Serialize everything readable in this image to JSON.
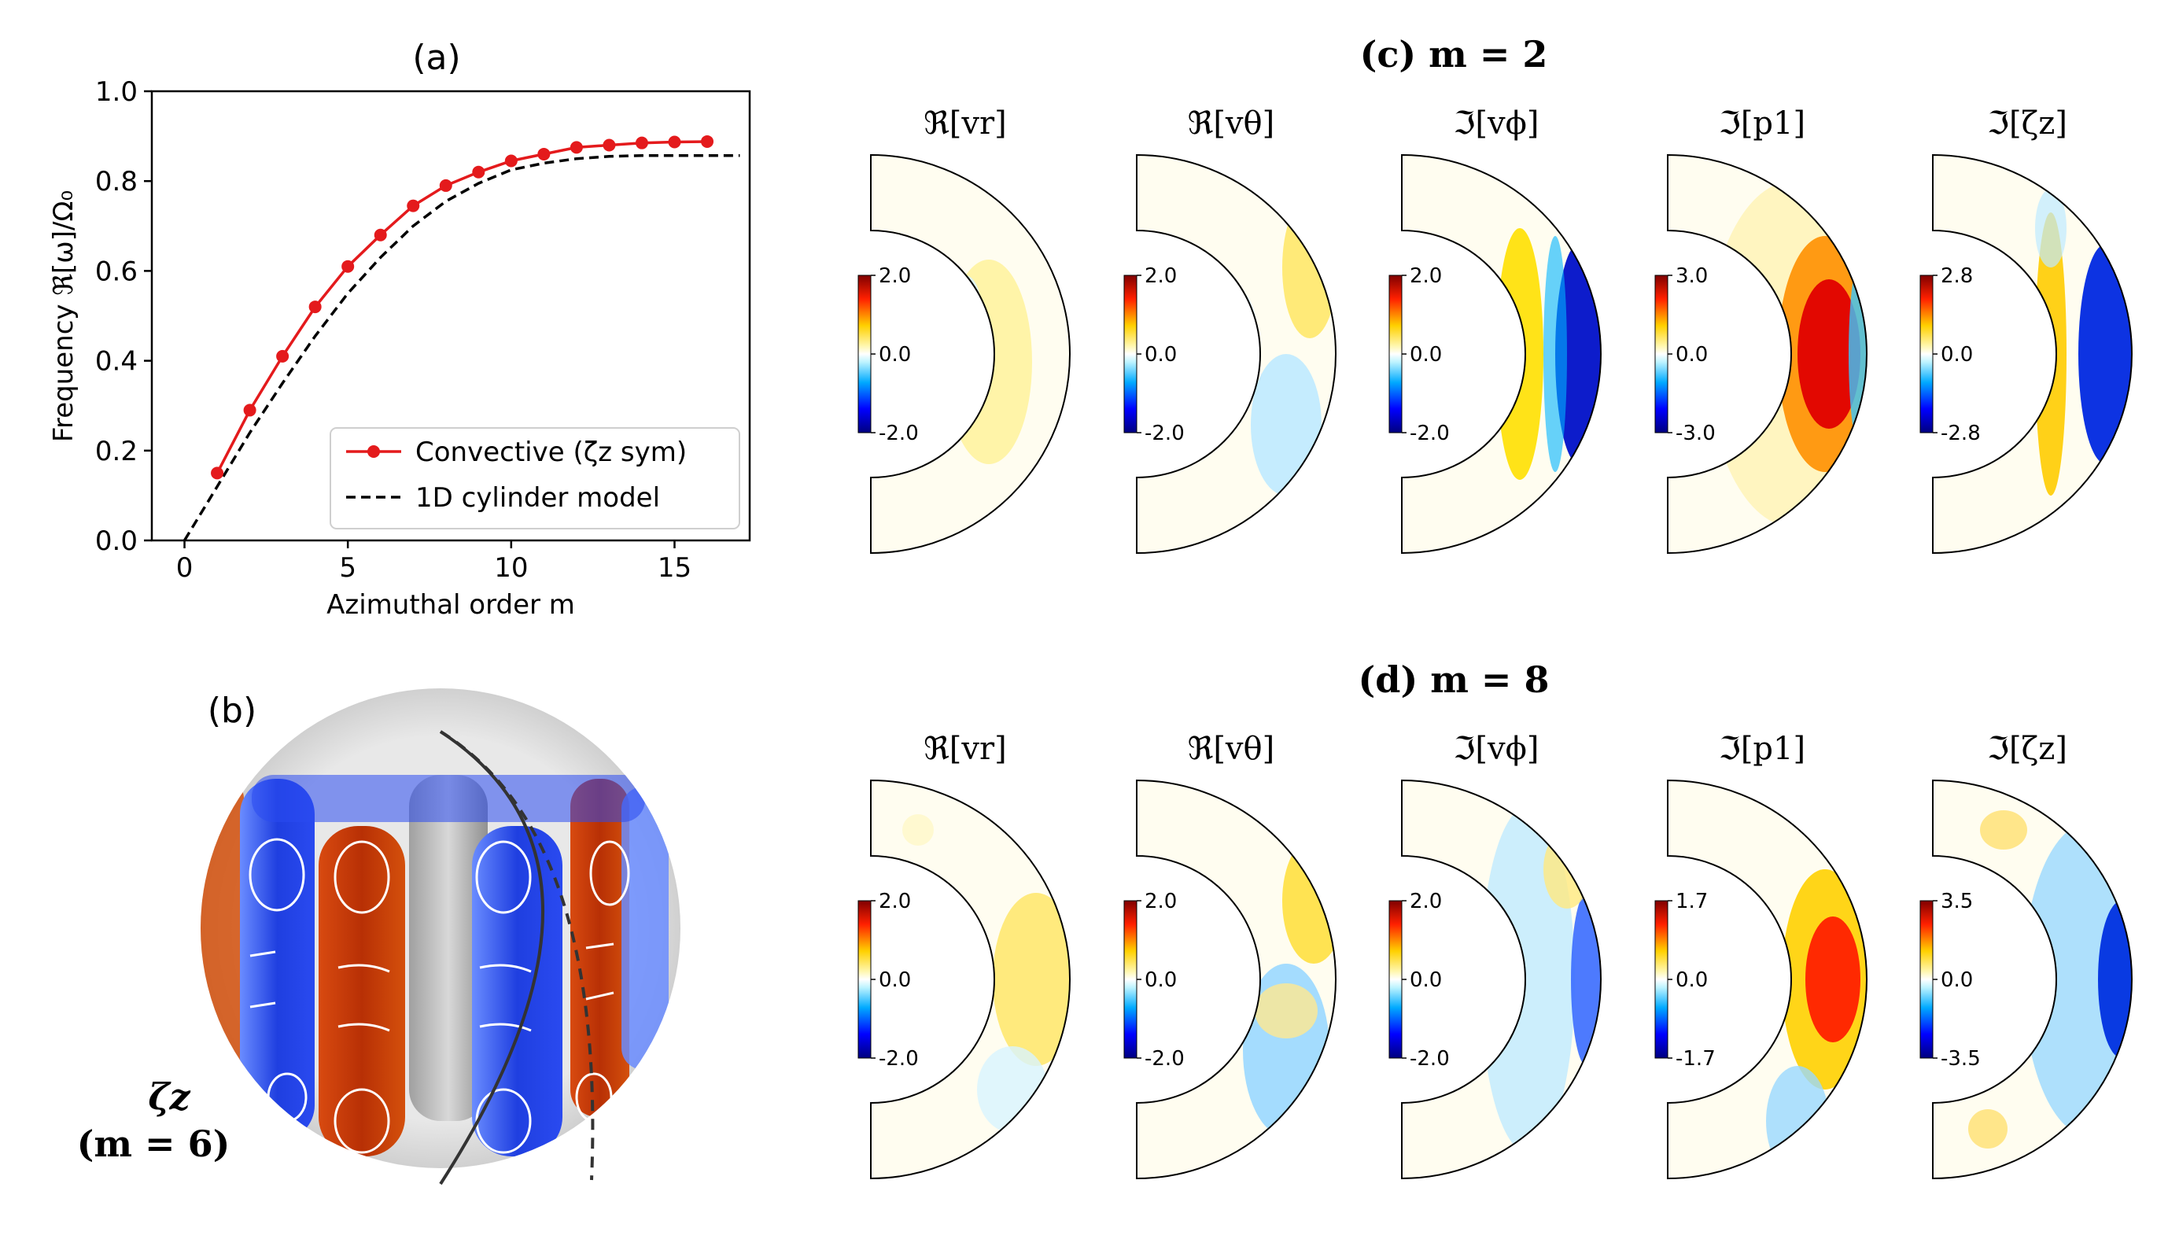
{
  "panel_a": {
    "label": "(a)",
    "chart_data": {
      "type": "line",
      "xlabel": "Azimuthal order m",
      "ylabel": "Frequency ℜ[ω]/Ω₀",
      "xlim": [
        -1,
        17.3
      ],
      "ylim": [
        0,
        1.0
      ],
      "xticks": [
        "0",
        "5",
        "10",
        "15"
      ],
      "yticks": [
        "0.0",
        "0.2",
        "0.4",
        "0.6",
        "0.8",
        "1.0"
      ],
      "grid": false,
      "legend_position": "bottom-right",
      "series": [
        {
          "name": "Convective (ζz sym)",
          "color": "#e41a1c",
          "style": "solid-markers",
          "x": [
            1,
            2,
            3,
            4,
            5,
            6,
            7,
            8,
            9,
            10,
            11,
            12,
            13,
            14,
            15,
            16
          ],
          "y": [
            0.15,
            0.29,
            0.41,
            0.52,
            0.61,
            0.68,
            0.745,
            0.79,
            0.82,
            0.845,
            0.86,
            0.875,
            0.88,
            0.885,
            0.887,
            0.888
          ]
        },
        {
          "name": "1D cylinder model",
          "color": "#000000",
          "style": "dashed",
          "x": [
            0,
            1,
            2,
            3,
            4,
            5,
            6,
            7,
            8,
            9,
            10,
            11,
            12,
            13,
            14,
            15,
            16,
            17
          ],
          "y": [
            0.0,
            0.12,
            0.24,
            0.35,
            0.455,
            0.55,
            0.63,
            0.7,
            0.755,
            0.795,
            0.825,
            0.84,
            0.85,
            0.855,
            0.857,
            0.857,
            0.857,
            0.857
          ]
        }
      ]
    }
  },
  "panel_b": {
    "label": "(b)",
    "caption_line1": "ζz",
    "caption_line2": "(m = 6)"
  },
  "panel_c": {
    "label": "(c) m = 2",
    "plots": [
      {
        "title": "ℜ[vr]",
        "cb_max": "2.0",
        "cb_mid": "0.0",
        "cb_min": "-2.0"
      },
      {
        "title": "ℜ[vθ]",
        "cb_max": "2.0",
        "cb_mid": "0.0",
        "cb_min": "-2.0"
      },
      {
        "title": "ℑ[vϕ]",
        "cb_max": "2.0",
        "cb_mid": "0.0",
        "cb_min": "-2.0"
      },
      {
        "title": "ℑ[p1]",
        "cb_max": "3.0",
        "cb_mid": "0.0",
        "cb_min": "-3.0"
      },
      {
        "title": "ℑ[ζz]",
        "cb_max": "2.8",
        "cb_mid": "0.0",
        "cb_min": "-2.8"
      }
    ]
  },
  "panel_d": {
    "label": "(d) m = 8",
    "plots": [
      {
        "title": "ℜ[vr]",
        "cb_max": "2.0",
        "cb_mid": "0.0",
        "cb_min": "-2.0"
      },
      {
        "title": "ℜ[vθ]",
        "cb_max": "2.0",
        "cb_mid": "0.0",
        "cb_min": "-2.0"
      },
      {
        "title": "ℑ[vϕ]",
        "cb_max": "2.0",
        "cb_mid": "0.0",
        "cb_min": "-2.0"
      },
      {
        "title": "ℑ[p1]",
        "cb_max": "1.7",
        "cb_mid": "0.0",
        "cb_min": "-1.7"
      },
      {
        "title": "ℑ[ζz]",
        "cb_max": "3.5",
        "cb_mid": "0.0",
        "cb_min": "-3.5"
      }
    ]
  }
}
